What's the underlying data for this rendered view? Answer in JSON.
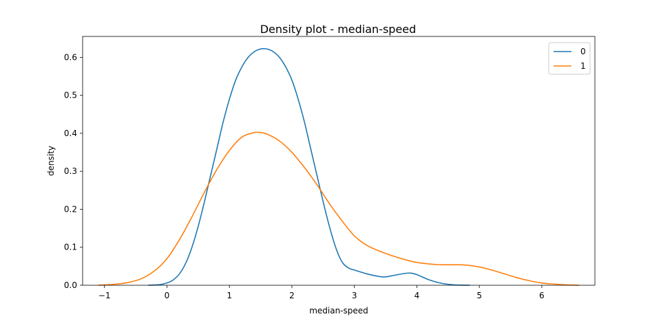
{
  "chart_data": {
    "type": "line",
    "title": "Density plot - median-speed",
    "xlabel": "median-speed",
    "ylabel": "density",
    "xlim": [
      -1.35,
      6.85
    ],
    "ylim": [
      0,
      0.655
    ],
    "xticks": [
      -1,
      0,
      1,
      2,
      3,
      4,
      5,
      6
    ],
    "xtick_labels": [
      "−1",
      "0",
      "1",
      "2",
      "3",
      "4",
      "5",
      "6"
    ],
    "yticks": [
      0.0,
      0.1,
      0.2,
      0.3,
      0.4,
      0.5,
      0.6
    ],
    "ytick_labels": [
      "0.0",
      "0.1",
      "0.2",
      "0.3",
      "0.4",
      "0.5",
      "0.6"
    ],
    "grid": false,
    "legend_position": "top-right",
    "series": [
      {
        "name": "0",
        "color": "#1f77b4",
        "x": [
          -0.3,
          -0.1,
          0.0,
          0.1,
          0.2,
          0.3,
          0.4,
          0.5,
          0.6,
          0.7,
          0.8,
          0.9,
          1.0,
          1.1,
          1.2,
          1.3,
          1.4,
          1.5,
          1.6,
          1.7,
          1.8,
          1.9,
          2.0,
          2.1,
          2.2,
          2.3,
          2.4,
          2.5,
          2.6,
          2.7,
          2.8,
          2.9,
          3.0,
          3.2,
          3.4,
          3.5,
          3.6,
          3.8,
          3.9,
          4.0,
          4.2,
          4.4,
          4.6,
          4.85
        ],
        "y": [
          0.0,
          0.002,
          0.006,
          0.014,
          0.03,
          0.058,
          0.1,
          0.155,
          0.22,
          0.29,
          0.36,
          0.43,
          0.49,
          0.54,
          0.575,
          0.6,
          0.615,
          0.622,
          0.622,
          0.615,
          0.6,
          0.575,
          0.54,
          0.49,
          0.43,
          0.36,
          0.29,
          0.22,
          0.155,
          0.1,
          0.062,
          0.046,
          0.04,
          0.03,
          0.023,
          0.022,
          0.025,
          0.031,
          0.032,
          0.028,
          0.014,
          0.005,
          0.001,
          0.0
        ]
      },
      {
        "name": "1",
        "color": "#ff7f0e",
        "x": [
          -1.1,
          -0.8,
          -0.6,
          -0.4,
          -0.2,
          0.0,
          0.2,
          0.4,
          0.6,
          0.8,
          1.0,
          1.2,
          1.4,
          1.5,
          1.6,
          1.8,
          2.0,
          2.2,
          2.4,
          2.6,
          2.8,
          3.0,
          3.2,
          3.4,
          3.6,
          3.8,
          4.0,
          4.2,
          4.4,
          4.6,
          4.8,
          5.0,
          5.2,
          5.4,
          5.6,
          5.8,
          6.0,
          6.2,
          6.4,
          6.6
        ],
        "y": [
          0.0,
          0.003,
          0.008,
          0.018,
          0.038,
          0.07,
          0.12,
          0.18,
          0.245,
          0.305,
          0.355,
          0.39,
          0.402,
          0.402,
          0.398,
          0.38,
          0.35,
          0.31,
          0.265,
          0.215,
          0.17,
          0.13,
          0.105,
          0.09,
          0.078,
          0.068,
          0.06,
          0.056,
          0.054,
          0.054,
          0.053,
          0.048,
          0.04,
          0.03,
          0.02,
          0.012,
          0.006,
          0.003,
          0.001,
          0.0
        ]
      }
    ]
  }
}
